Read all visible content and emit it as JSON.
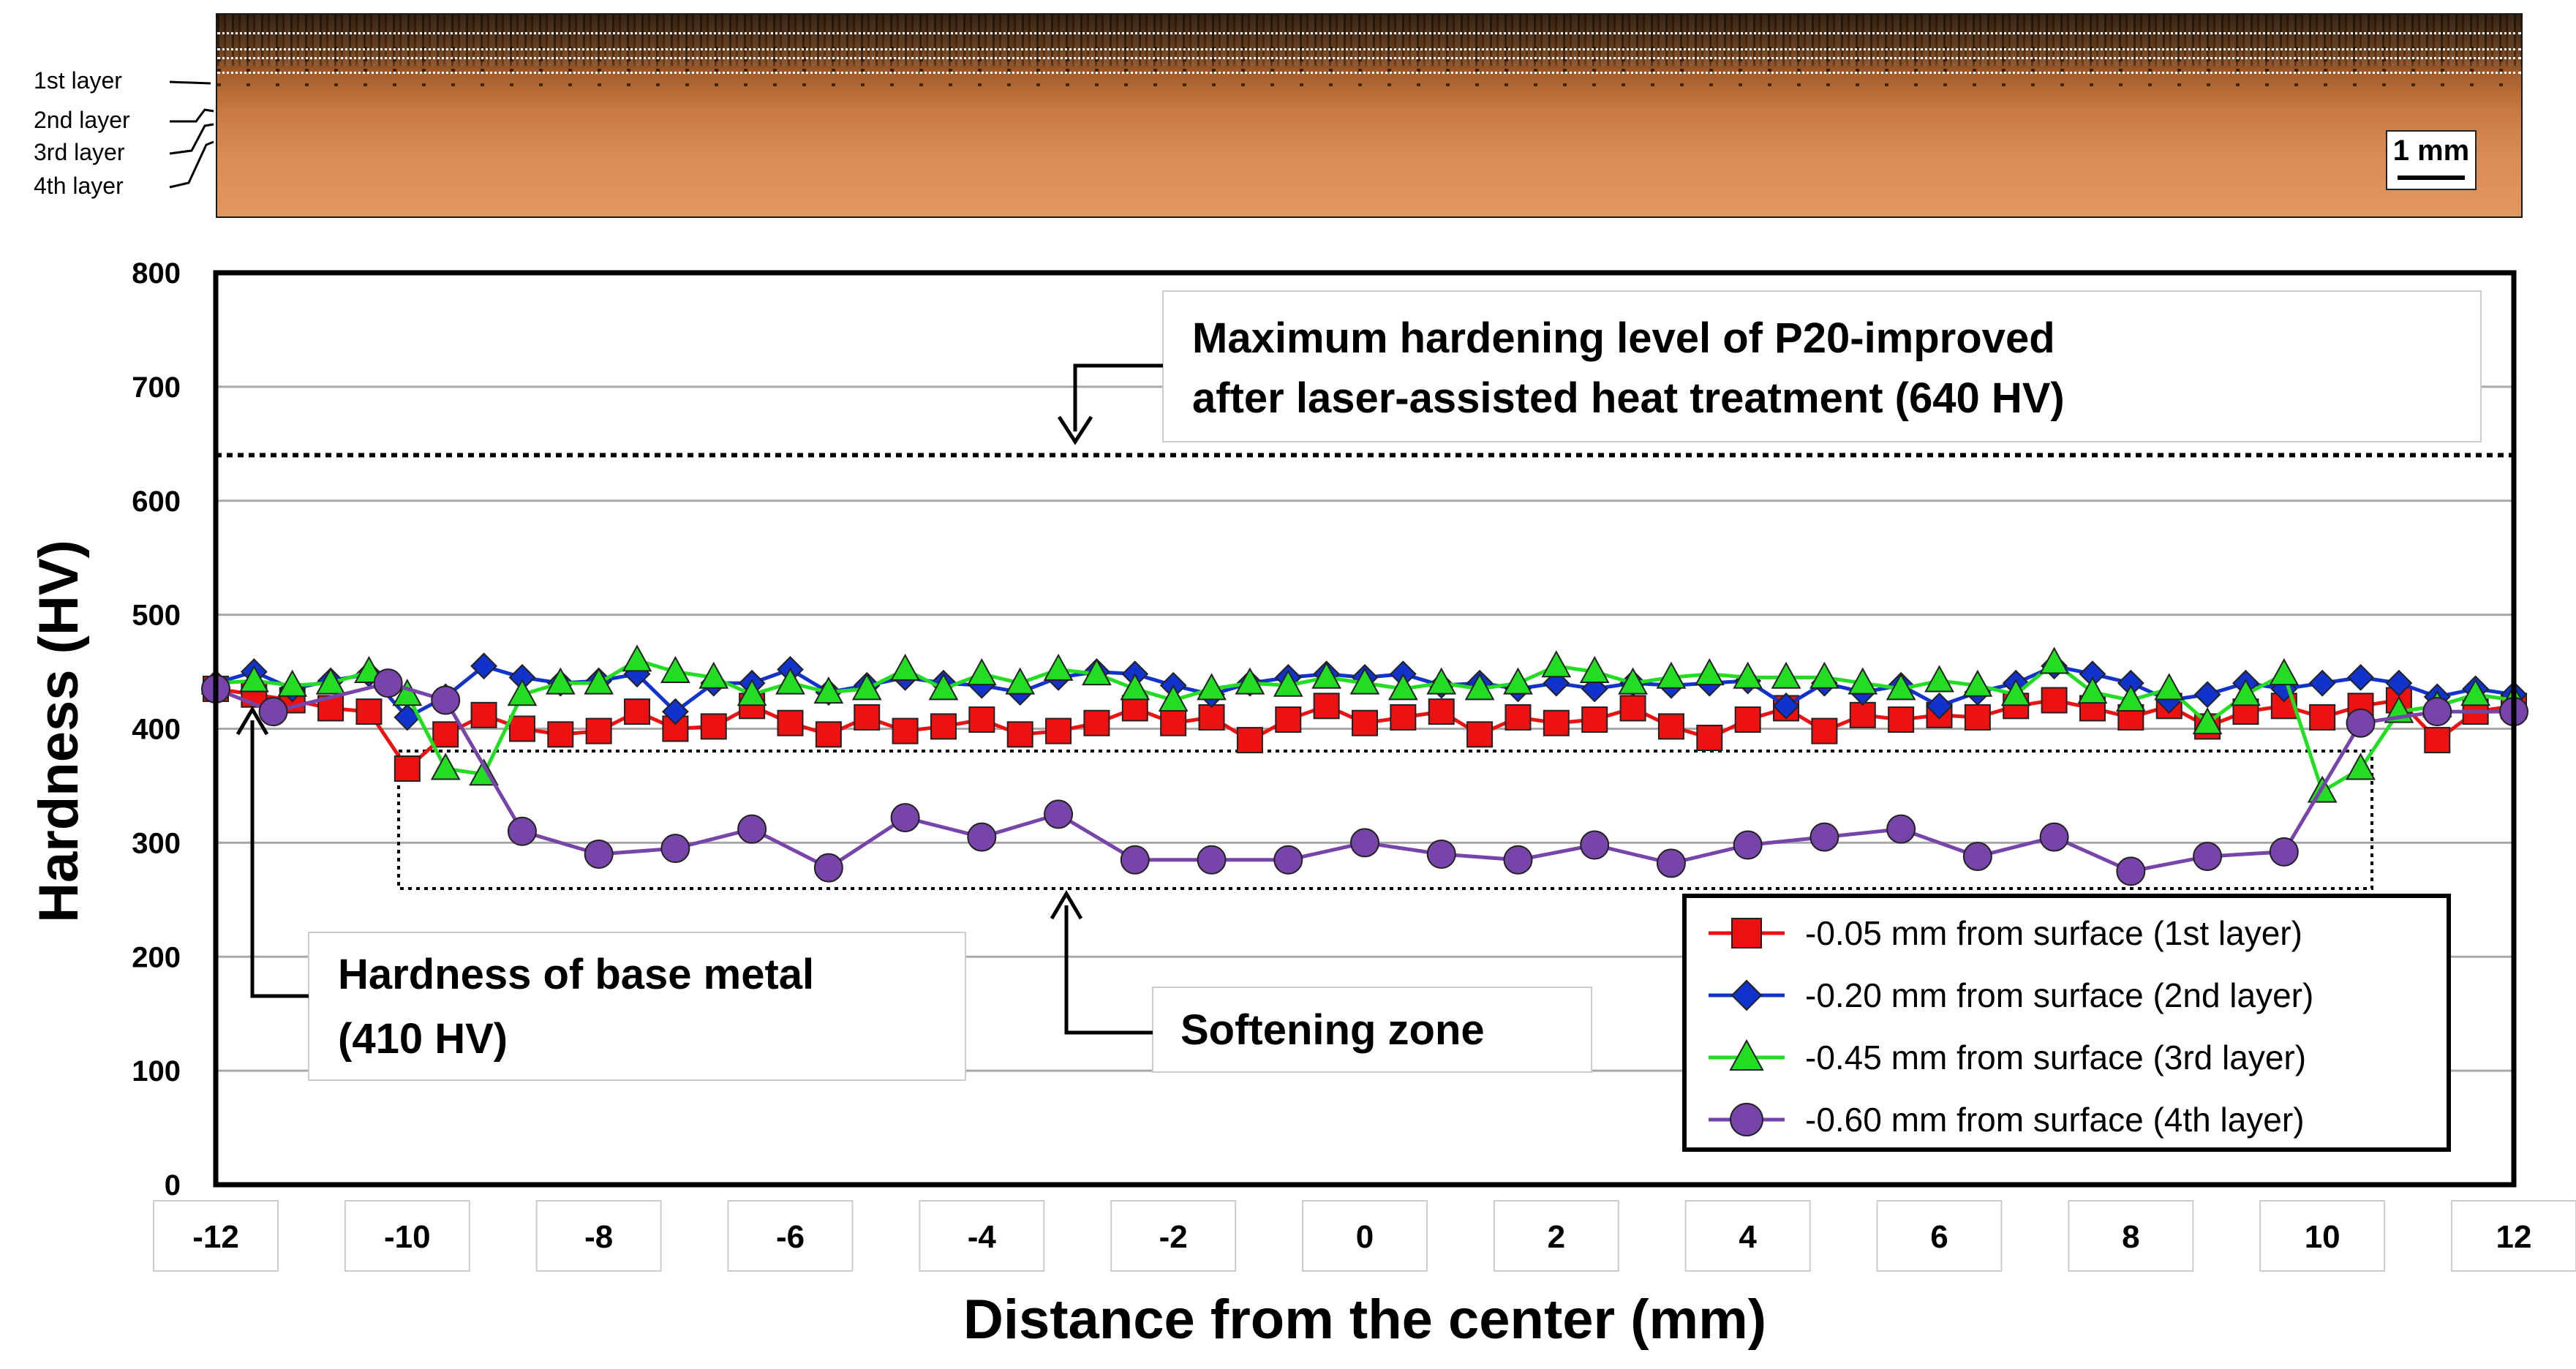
{
  "micrograph": {
    "layer_labels": [
      "1st layer",
      "2nd layer",
      "3rd layer",
      "4th layer"
    ],
    "scale_bar": "1 mm"
  },
  "annotations": {
    "max_hardening_line1": "Maximum hardening level of P20-improved",
    "max_hardening_line2": "after laser-assisted heat treatment (640 HV)",
    "base_metal_line1": "Hardness of base metal",
    "base_metal_line2": "(410 HV)",
    "softening": "Softening zone"
  },
  "chart_data": {
    "type": "line",
    "xlabel": "Distance from the center (mm)",
    "ylabel": "Hardness (HV)",
    "xlim": [
      -12,
      12
    ],
    "ylim": [
      0,
      800
    ],
    "x_ticks": [
      -12,
      -10,
      -8,
      -6,
      -4,
      -2,
      0,
      2,
      4,
      6,
      8,
      10,
      12
    ],
    "x_tick_labels": [
      "-12",
      "-10",
      "-8",
      "-6",
      "-4",
      "-2",
      "0",
      "2",
      "4",
      "6",
      "8",
      "10",
      "12"
    ],
    "y_ticks": [
      0,
      100,
      200,
      300,
      400,
      500,
      600,
      700,
      800
    ],
    "y_tick_labels": [
      "0",
      "100",
      "200",
      "300",
      "400",
      "500",
      "600",
      "700",
      "800"
    ],
    "grid": true,
    "reference_line": {
      "y": 640,
      "label": "640 HV"
    },
    "series": [
      {
        "name": "-0.05 mm  from surface (1st layer)",
        "color": "#ee1111",
        "marker": "square",
        "x": [
          -12,
          -11.6,
          -11.2,
          -10.8,
          -10.4,
          -10.0,
          -9.6,
          -9.2,
          -8.8,
          -8.4,
          -8.0,
          -7.6,
          -7.2,
          -6.8,
          -6.4,
          -6.0,
          -5.6,
          -5.2,
          -4.8,
          -4.4,
          -4.0,
          -3.6,
          -3.2,
          -2.8,
          -2.4,
          -2.0,
          -1.6,
          -1.2,
          -0.8,
          -0.4,
          0.0,
          0.4,
          0.8,
          1.2,
          1.6,
          2.0,
          2.4,
          2.8,
          3.2,
          3.6,
          4.0,
          4.4,
          4.8,
          5.2,
          5.6,
          6.0,
          6.4,
          6.8,
          7.2,
          7.6,
          8.0,
          8.4,
          8.8,
          9.2,
          9.6,
          10.0,
          10.4,
          10.8,
          11.2,
          11.6,
          12.0
        ],
        "y": [
          435,
          430,
          425,
          418,
          415,
          365,
          395,
          412,
          400,
          395,
          398,
          415,
          400,
          402,
          420,
          405,
          395,
          410,
          398,
          402,
          408,
          395,
          398,
          405,
          418,
          405,
          410,
          390,
          408,
          420,
          405,
          410,
          415,
          395,
          410,
          405,
          408,
          418,
          402,
          392,
          408,
          418,
          398,
          412,
          408,
          412,
          410,
          420,
          425,
          418,
          410,
          420,
          402,
          415,
          420,
          410,
          420,
          425,
          390,
          415,
          420
        ]
      },
      {
        "name": "-0.20 mm  from surface (2nd layer)",
        "color": "#1133cc",
        "marker": "diamond",
        "x": [
          -12,
          -11.6,
          -11.2,
          -10.8,
          -10.4,
          -10.0,
          -9.6,
          -9.2,
          -8.8,
          -8.4,
          -8.0,
          -7.6,
          -7.2,
          -6.8,
          -6.4,
          -6.0,
          -5.6,
          -5.2,
          -4.8,
          -4.4,
          -4.0,
          -3.6,
          -3.2,
          -2.8,
          -2.4,
          -2.0,
          -1.6,
          -1.2,
          -0.8,
          -0.4,
          0.0,
          0.4,
          0.8,
          1.2,
          1.6,
          2.0,
          2.4,
          2.8,
          3.2,
          3.6,
          4.0,
          4.4,
          4.8,
          5.2,
          5.6,
          6.0,
          6.4,
          6.8,
          7.2,
          7.6,
          8.0,
          8.4,
          8.8,
          9.2,
          9.6,
          10.0,
          10.4,
          10.8,
          11.2,
          11.6,
          12.0
        ],
        "y": [
          440,
          450,
          435,
          442,
          448,
          410,
          428,
          455,
          445,
          440,
          442,
          448,
          415,
          440,
          440,
          452,
          432,
          438,
          445,
          440,
          438,
          432,
          445,
          450,
          448,
          438,
          430,
          440,
          445,
          448,
          445,
          448,
          438,
          440,
          435,
          440,
          435,
          440,
          438,
          440,
          442,
          420,
          440,
          432,
          438,
          420,
          432,
          440,
          455,
          448,
          440,
          425,
          430,
          440,
          435,
          440,
          445,
          440,
          428,
          435,
          430
        ]
      },
      {
        "name": "-0.45 mm  from surface (3rd layer)",
        "color": "#22dd22",
        "marker": "triangle",
        "x": [
          -12,
          -11.6,
          -11.2,
          -10.8,
          -10.4,
          -10.0,
          -9.6,
          -9.2,
          -8.8,
          -8.4,
          -8.0,
          -7.6,
          -7.2,
          -6.8,
          -6.4,
          -6.0,
          -5.6,
          -5.2,
          -4.8,
          -4.4,
          -4.0,
          -3.6,
          -3.2,
          -2.8,
          -2.4,
          -2.0,
          -1.6,
          -1.2,
          -0.8,
          -0.4,
          0.0,
          0.4,
          0.8,
          1.2,
          1.6,
          2.0,
          2.4,
          2.8,
          3.2,
          3.6,
          4.0,
          4.4,
          4.8,
          5.2,
          5.6,
          6.0,
          6.4,
          6.8,
          7.2,
          7.6,
          8.0,
          8.4,
          8.8,
          9.2,
          9.6,
          10.0,
          10.4,
          10.8,
          11.2,
          11.6,
          12.0
        ],
        "y": [
          440,
          442,
          438,
          440,
          450,
          430,
          365,
          360,
          430,
          440,
          440,
          460,
          450,
          445,
          430,
          440,
          432,
          435,
          452,
          435,
          448,
          440,
          452,
          448,
          435,
          425,
          435,
          440,
          438,
          445,
          440,
          435,
          440,
          435,
          440,
          455,
          450,
          440,
          445,
          448,
          445,
          445,
          445,
          440,
          435,
          442,
          438,
          430,
          458,
          432,
          425,
          435,
          405,
          430,
          448,
          345,
          365,
          415,
          420,
          430,
          425
        ]
      },
      {
        "name": "-0.60 mm  from surface (4th layer)",
        "color": "#7744aa",
        "marker": "circle",
        "x": [
          -12,
          -11.4,
          -10.2,
          -9.6,
          -8.8,
          -8.0,
          -7.2,
          -6.4,
          -5.6,
          -4.8,
          -4.0,
          -3.2,
          -2.4,
          -1.6,
          -0.8,
          0.0,
          0.8,
          1.6,
          2.4,
          3.2,
          4.0,
          4.8,
          5.6,
          6.4,
          7.2,
          8.0,
          8.8,
          9.6,
          10.4,
          11.2,
          12.0
        ],
        "y": [
          435,
          415,
          440,
          425,
          310,
          290,
          295,
          312,
          278,
          322,
          305,
          325,
          285,
          285,
          285,
          300,
          290,
          285,
          298,
          282,
          298,
          305,
          312,
          288,
          305,
          275,
          288,
          292,
          405,
          415,
          415
        ]
      }
    ]
  }
}
